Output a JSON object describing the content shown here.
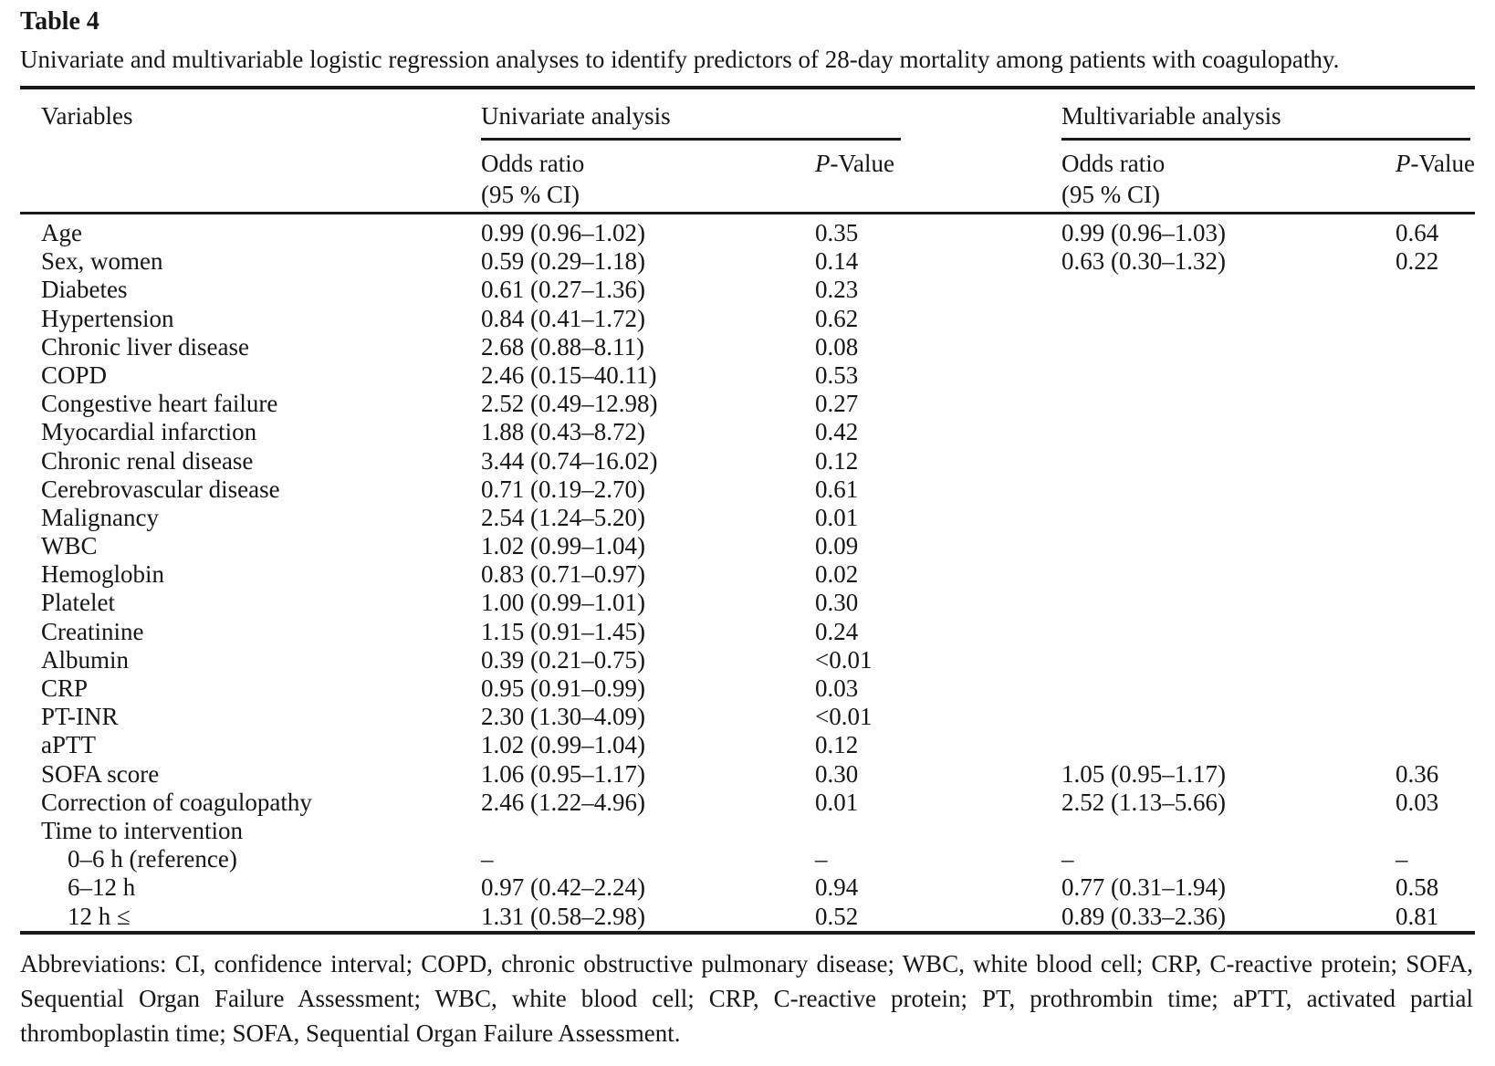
{
  "table": {
    "label": "Table 4",
    "caption": "Univariate and multivariable logistic regression analyses to identify predictors of 28-day mortality among patients with coagulopathy.",
    "header": {
      "variables": "Variables",
      "univariate_group": "Univariate analysis",
      "multivariable_group": "Multivariable analysis",
      "odds_ratio": "Odds ratio",
      "ci_uni": "(95 % CI)",
      "ci_multi": " (95 % CI)",
      "p_italic": "P",
      "p_rest": "-Value"
    },
    "rows": [
      {
        "variable": "Age",
        "indent": false,
        "uni_or": "0.99 (0.96–1.02)",
        "uni_p": "0.35",
        "multi_or": "0.99 (0.96–1.03)",
        "multi_p": "0.64"
      },
      {
        "variable": "Sex, women",
        "indent": false,
        "uni_or": "0.59 (0.29–1.18)",
        "uni_p": "0.14",
        "multi_or": "0.63 (0.30–1.32)",
        "multi_p": "0.22"
      },
      {
        "variable": "Diabetes",
        "indent": false,
        "uni_or": "0.61 (0.27–1.36)",
        "uni_p": "0.23",
        "multi_or": "",
        "multi_p": ""
      },
      {
        "variable": "Hypertension",
        "indent": false,
        "uni_or": "0.84 (0.41–1.72)",
        "uni_p": "0.62",
        "multi_or": "",
        "multi_p": ""
      },
      {
        "variable": "Chronic liver disease",
        "indent": false,
        "uni_or": "2.68 (0.88–8.11)",
        "uni_p": "0.08",
        "multi_or": "",
        "multi_p": ""
      },
      {
        "variable": "COPD",
        "indent": false,
        "uni_or": "2.46 (0.15–40.11)",
        "uni_p": "0.53",
        "multi_or": "",
        "multi_p": ""
      },
      {
        "variable": "Congestive heart failure",
        "indent": false,
        "uni_or": "2.52 (0.49–12.98)",
        "uni_p": "0.27",
        "multi_or": "",
        "multi_p": ""
      },
      {
        "variable": "Myocardial infarction",
        "indent": false,
        "uni_or": "1.88 (0.43–8.72)",
        "uni_p": "0.42",
        "multi_or": "",
        "multi_p": ""
      },
      {
        "variable": "Chronic renal disease",
        "indent": false,
        "uni_or": "3.44 (0.74–16.02)",
        "uni_p": "0.12",
        "multi_or": "",
        "multi_p": ""
      },
      {
        "variable": "Cerebrovascular disease",
        "indent": false,
        "uni_or": "0.71 (0.19–2.70)",
        "uni_p": "0.61",
        "multi_or": "",
        "multi_p": ""
      },
      {
        "variable": "Malignancy",
        "indent": false,
        "uni_or": "2.54 (1.24–5.20)",
        "uni_p": "0.01",
        "multi_or": "",
        "multi_p": ""
      },
      {
        "variable": "WBC",
        "indent": false,
        "uni_or": "1.02 (0.99–1.04)",
        "uni_p": "0.09",
        "multi_or": "",
        "multi_p": ""
      },
      {
        "variable": "Hemoglobin",
        "indent": false,
        "uni_or": "0.83 (0.71–0.97)",
        "uni_p": "0.02",
        "multi_or": "",
        "multi_p": ""
      },
      {
        "variable": "Platelet",
        "indent": false,
        "uni_or": "1.00 (0.99–1.01)",
        "uni_p": "0.30",
        "multi_or": "",
        "multi_p": ""
      },
      {
        "variable": "Creatinine",
        "indent": false,
        "uni_or": "1.15 (0.91–1.45)",
        "uni_p": "0.24",
        "multi_or": "",
        "multi_p": ""
      },
      {
        "variable": "Albumin",
        "indent": false,
        "uni_or": "0.39 (0.21–0.75)",
        "uni_p": "<0.01",
        "multi_or": "",
        "multi_p": ""
      },
      {
        "variable": "CRP",
        "indent": false,
        "uni_or": "0.95 (0.91–0.99)",
        "uni_p": "0.03",
        "multi_or": "",
        "multi_p": ""
      },
      {
        "variable": "PT-INR",
        "indent": false,
        "uni_or": "2.30 (1.30–4.09)",
        "uni_p": "<0.01",
        "multi_or": "",
        "multi_p": ""
      },
      {
        "variable": "aPTT",
        "indent": false,
        "uni_or": "1.02 (0.99–1.04)",
        "uni_p": "0.12",
        "multi_or": "",
        "multi_p": ""
      },
      {
        "variable": "SOFA score",
        "indent": false,
        "uni_or": "1.06 (0.95–1.17)",
        "uni_p": "0.30",
        "multi_or": "1.05 (0.95–1.17)",
        "multi_p": "0.36"
      },
      {
        "variable": "Correction of coagulopathy",
        "indent": false,
        "uni_or": "2.46 (1.22–4.96)",
        "uni_p": "0.01",
        "multi_or": "2.52 (1.13–5.66)",
        "multi_p": "0.03"
      },
      {
        "variable": "Time to intervention",
        "indent": false,
        "uni_or": "",
        "uni_p": "",
        "multi_or": "",
        "multi_p": ""
      },
      {
        "variable": "0–6 h (reference)",
        "indent": true,
        "uni_or": "–",
        "uni_p": "–",
        "multi_or": "–",
        "multi_p": "–"
      },
      {
        "variable": "6–12 h",
        "indent": true,
        "uni_or": "0.97 (0.42–2.24)",
        "uni_p": "0.94",
        "multi_or": "0.77 (0.31–1.94)",
        "multi_p": "0.58"
      },
      {
        "variable": "12 h ≤",
        "indent": true,
        "uni_or": "1.31 (0.58–2.98)",
        "uni_p": "0.52",
        "multi_or": "0.89 (0.33–2.36)",
        "multi_p": "0.81"
      }
    ],
    "footnote": "Abbreviations: CI, confidence interval; COPD, chronic obstructive pulmonary disease; WBC, white blood cell; CRP, C-reactive protein; SOFA, Sequential Organ Failure Assessment; WBC, white blood cell; CRP, C-reactive protein; PT, prothrombin time; aPTT, activated partial thromboplastin time; SOFA, Sequential Organ Failure Assessment."
  }
}
